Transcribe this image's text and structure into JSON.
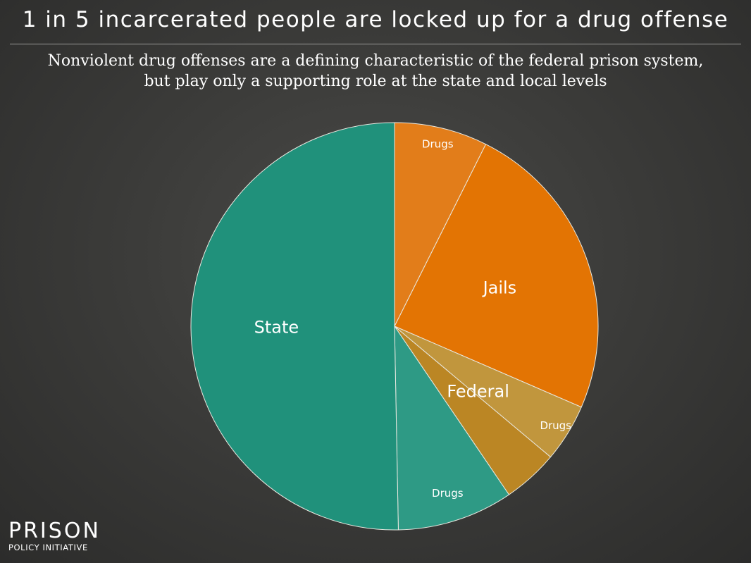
{
  "header": {
    "title": "1 in 5 incarcerated people are locked up for a drug offense",
    "subtitle_line1": "Nonviolent drug offenses are a defining characteristic of the federal prison system,",
    "subtitle_line2": "but play only a supporting role at the state and local levels"
  },
  "logo": {
    "word": "PRISON",
    "sub": "POLICY INITIATIVE"
  },
  "chart_data": {
    "type": "pie",
    "start": "12 o'clock, clockwise",
    "slices": [
      {
        "label": "Drugs",
        "group": "Jails",
        "value": 7.4,
        "color": "#E27D1A"
      },
      {
        "label": "Jails",
        "group": "Jails",
        "value": 24.1,
        "color": "#E37403"
      },
      {
        "label": "Drugs",
        "group": "Federal",
        "value": 4.6,
        "color": "#C1963D"
      },
      {
        "label": "Federal",
        "group": "Federal",
        "value": 4.4,
        "color": "#BB8624"
      },
      {
        "label": "Drugs",
        "group": "State",
        "value": 9.2,
        "color": "#2E9A85"
      },
      {
        "label": "State",
        "group": "State",
        "value": 50.3,
        "color": "#20917B"
      }
    ],
    "slice_labels": [
      {
        "text": "Drugs",
        "size": "small"
      },
      {
        "text": "Jails",
        "size": "large"
      },
      {
        "text": "Drugs",
        "size": "small"
      },
      {
        "text": "Federal",
        "size": "large"
      },
      {
        "text": "Drugs",
        "size": "small"
      },
      {
        "text": "State",
        "size": "large"
      }
    ]
  }
}
